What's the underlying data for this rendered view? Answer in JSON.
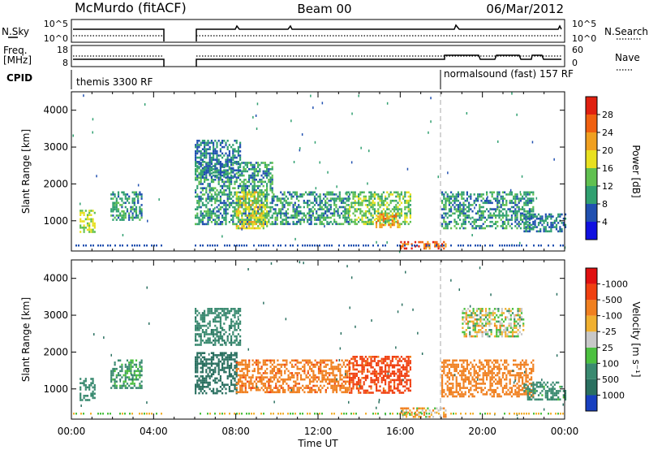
{
  "header": {
    "station": "McMurdo (fitACF)",
    "beam": "Beam 00",
    "date": "06/Mar/2012"
  },
  "noise_panel": {
    "left_label": "N.Sky",
    "right_label": "N.Search",
    "left_ticks": [
      "10^5",
      "10^0"
    ],
    "right_ticks": [
      "10^5",
      "10^0"
    ]
  },
  "freq_panel": {
    "left_label_1": "Freq.",
    "left_label_2": "[MHz]",
    "right_label": "Nave",
    "left_ticks": [
      "18",
      "8"
    ],
    "right_ticks": [
      "60",
      "0"
    ]
  },
  "cpid": {
    "label": "CPID",
    "segments": [
      {
        "text": "themis 3300 RF",
        "start_hour": 0
      },
      {
        "text": "normalsound (fast) 157 RF",
        "start_hour": 18
      }
    ]
  },
  "x_axis": {
    "label": "Time UT",
    "ticks": [
      "00:00",
      "04:00",
      "08:00",
      "12:00",
      "16:00",
      "20:00",
      "00:00"
    ]
  },
  "power_colorbar": {
    "label": "Power [dB]",
    "ticks": [
      "4",
      "8",
      "12",
      "16",
      "20",
      "24",
      "28"
    ],
    "colors": [
      "#1010e0",
      "#2050b0",
      "#30a070",
      "#60c050",
      "#e8e020",
      "#f0a020",
      "#f06010",
      "#e02010"
    ]
  },
  "velocity_colorbar": {
    "label": "Velocity [m s⁻¹]",
    "ticks": [
      "1000",
      "500",
      "100",
      "25",
      "-25",
      "-100",
      "-500",
      "-1000"
    ],
    "colors": [
      "#1840c0",
      "#2a7060",
      "#3a8a70",
      "#4cc040",
      "#c8c8c8",
      "#f0b030",
      "#f08020",
      "#f04010",
      "#e01010"
    ]
  },
  "chart_data": {
    "type": "heatmap",
    "x_range_hours": [
      0,
      24
    ],
    "panels": [
      {
        "name": "power",
        "ylabel": "Slant Range [km]",
        "yticks": [
          "1000",
          "2000",
          "3000",
          "4000"
        ],
        "ylim": [
          180,
          4500
        ],
        "clim_db": [
          0,
          30
        ],
        "echo_regions": [
          {
            "t": [
              0.4,
              1.1
            ],
            "range": [
              700,
              1300
            ],
            "level_db": 16
          },
          {
            "t": [
              1.9,
              3.4
            ],
            "range": [
              1000,
              1800
            ],
            "level_db": 10
          },
          {
            "t": [
              6.0,
              9.8
            ],
            "range": [
              900,
              2600
            ],
            "level_db": 10
          },
          {
            "t": [
              6.0,
              8.2
            ],
            "range": [
              2200,
              3200
            ],
            "level_db": 8
          },
          {
            "t": [
              8.0,
              9.5
            ],
            "range": [
              800,
              1800
            ],
            "level_db": 18
          },
          {
            "t": [
              9.8,
              13.5
            ],
            "range": [
              900,
              1800
            ],
            "level_db": 10
          },
          {
            "t": [
              13.5,
              16.5
            ],
            "range": [
              900,
              1800
            ],
            "level_db": 14
          },
          {
            "t": [
              14.8,
              16.0
            ],
            "range": [
              800,
              1200
            ],
            "level_db": 22
          },
          {
            "t": [
              16.0,
              18.2
            ],
            "range": [
              250,
              450
            ],
            "level_db": 26
          },
          {
            "t": [
              18.0,
              22.5
            ],
            "range": [
              800,
              1800
            ],
            "level_db": 10
          },
          {
            "t": [
              22.0,
              24.0
            ],
            "range": [
              700,
              1200
            ],
            "level_db": 8
          }
        ]
      },
      {
        "name": "velocity",
        "ylabel": "Slant Range [km]",
        "yticks": [
          "1000",
          "2000",
          "3000",
          "4000"
        ],
        "ylim": [
          180,
          4500
        ],
        "clim_ms": [
          -1000,
          1000
        ],
        "echo_regions": [
          {
            "t": [
              0.4,
              1.1
            ],
            "range": [
              700,
              1300
            ],
            "velocity": 300
          },
          {
            "t": [
              1.9,
              3.4
            ],
            "range": [
              1000,
              1800
            ],
            "velocity": 150
          },
          {
            "t": [
              6.0,
              8.2
            ],
            "range": [
              2200,
              3200
            ],
            "velocity": 400
          },
          {
            "t": [
              6.0,
              8.0
            ],
            "range": [
              900,
              2000
            ],
            "velocity": 800
          },
          {
            "t": [
              8.0,
              13.5
            ],
            "range": [
              900,
              1800
            ],
            "velocity": -400
          },
          {
            "t": [
              13.5,
              16.5
            ],
            "range": [
              900,
              1900
            ],
            "velocity": -600
          },
          {
            "t": [
              16.0,
              18.2
            ],
            "range": [
              250,
              500
            ],
            "velocity": -80
          },
          {
            "t": [
              18.0,
              22.5
            ],
            "range": [
              800,
              1800
            ],
            "velocity": -300
          },
          {
            "t": [
              19.0,
              22.0
            ],
            "range": [
              2400,
              3200
            ],
            "velocity": 10
          },
          {
            "t": [
              22.0,
              24.0
            ],
            "range": [
              700,
              1200
            ],
            "velocity": 200
          }
        ]
      }
    ]
  }
}
